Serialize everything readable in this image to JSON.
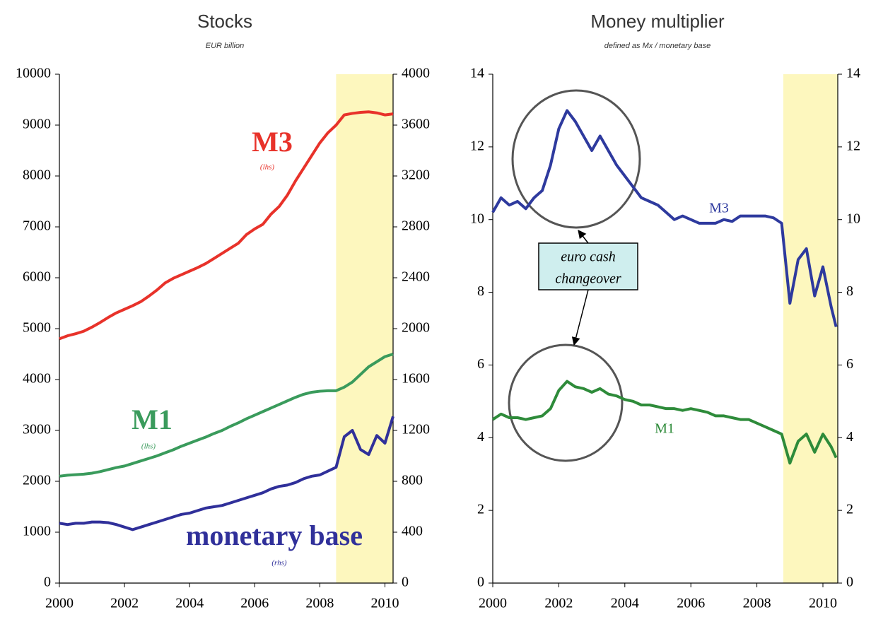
{
  "chart_data": [
    {
      "type": "line",
      "title": "Stocks",
      "subtitle": "EUR billion",
      "xlim": [
        2000,
        2010.25
      ],
      "xticks": [
        2000,
        2002,
        2004,
        2006,
        2008,
        2010
      ],
      "ylim": [
        0,
        10000
      ],
      "yticks": [
        0,
        1000,
        2000,
        3000,
        4000,
        5000,
        6000,
        7000,
        8000,
        9000,
        10000
      ],
      "y2lim": [
        0,
        4000
      ],
      "y2ticks": [
        0,
        400,
        800,
        1200,
        1600,
        2000,
        2400,
        2800,
        3200,
        3600,
        4000
      ],
      "shade": [
        2008.5,
        2010.25
      ],
      "shade_color": "#fdf7be",
      "x": [
        2000,
        2000.25,
        2000.5,
        2000.75,
        2001,
        2001.25,
        2001.5,
        2001.75,
        2002,
        2002.25,
        2002.5,
        2002.75,
        2003,
        2003.25,
        2003.5,
        2003.75,
        2004,
        2004.25,
        2004.5,
        2004.75,
        2005,
        2005.25,
        2005.5,
        2005.75,
        2006,
        2006.25,
        2006.5,
        2006.75,
        2007,
        2007.25,
        2007.5,
        2007.75,
        2008,
        2008.25,
        2008.5,
        2008.75,
        2009,
        2009.25,
        2009.5,
        2009.75,
        2010,
        2010.25
      ],
      "series": [
        {
          "name": "M3",
          "color": "#e8322a",
          "values": [
            4800,
            4860,
            4900,
            4950,
            5030,
            5120,
            5220,
            5310,
            5380,
            5450,
            5530,
            5640,
            5760,
            5900,
            5990,
            6060,
            6130,
            6200,
            6280,
            6380,
            6480,
            6580,
            6680,
            6850,
            6960,
            7050,
            7250,
            7400,
            7620,
            7900,
            8150,
            8400,
            8650,
            8850,
            9000,
            9200,
            9230,
            9250,
            9260,
            9240,
            9200,
            9220
          ]
        },
        {
          "name": "M1",
          "color": "#3a9b5c",
          "values": [
            2100,
            2120,
            2130,
            2140,
            2160,
            2190,
            2230,
            2270,
            2300,
            2350,
            2400,
            2450,
            2500,
            2560,
            2620,
            2690,
            2750,
            2810,
            2870,
            2940,
            3000,
            3080,
            3150,
            3230,
            3300,
            3370,
            3440,
            3510,
            3580,
            3650,
            3710,
            3750,
            3770,
            3780,
            3780,
            3850,
            3950,
            4100,
            4250,
            4350,
            4450,
            4500
          ]
        },
        {
          "name": "monetary base",
          "color": "#30309a",
          "axis": "y2",
          "values": [
            470,
            460,
            470,
            470,
            480,
            480,
            475,
            460,
            440,
            420,
            440,
            460,
            480,
            500,
            520,
            540,
            550,
            570,
            590,
            600,
            610,
            630,
            650,
            670,
            690,
            710,
            740,
            760,
            770,
            790,
            820,
            840,
            850,
            880,
            910,
            1150,
            1200,
            1050,
            1010,
            1160,
            1100,
            1310
          ]
        }
      ],
      "annotations": [
        "M3",
        "(lhs)",
        "M1",
        "(lhs)",
        "monetary base",
        "(rhs)"
      ]
    },
    {
      "type": "line",
      "title": "Money multiplier",
      "subtitle": "defined as Mx / monetary base",
      "xlim": [
        2000,
        2010.45
      ],
      "xticks": [
        2000,
        2002,
        2004,
        2006,
        2008,
        2010
      ],
      "ylim": [
        0,
        14
      ],
      "yticks": [
        0,
        2,
        4,
        6,
        8,
        10,
        12,
        14
      ],
      "y2lim": [
        0,
        14
      ],
      "y2ticks": [
        0,
        2,
        4,
        6,
        8,
        10,
        12,
        14
      ],
      "shade": [
        2008.8,
        2010.45
      ],
      "shade_color": "#fdf7be",
      "x": [
        2000,
        2000.25,
        2000.5,
        2000.75,
        2001,
        2001.25,
        2001.5,
        2001.75,
        2002,
        2002.25,
        2002.5,
        2002.75,
        2003,
        2003.25,
        2003.5,
        2003.75,
        2004,
        2004.25,
        2004.5,
        2004.75,
        2005,
        2005.25,
        2005.5,
        2005.75,
        2006,
        2006.25,
        2006.5,
        2006.75,
        2007,
        2007.25,
        2007.5,
        2007.75,
        2008,
        2008.25,
        2008.5,
        2008.75,
        2009,
        2009.25,
        2009.5,
        2009.75,
        2010,
        2010.25,
        2010.4
      ],
      "series": [
        {
          "name": "M3",
          "color": "#2e3a9e",
          "values": [
            10.2,
            10.6,
            10.4,
            10.5,
            10.3,
            10.6,
            10.8,
            11.5,
            12.5,
            13.0,
            12.7,
            12.3,
            11.9,
            12.3,
            11.9,
            11.5,
            11.2,
            10.9,
            10.6,
            10.5,
            10.4,
            10.2,
            10.0,
            10.1,
            10.0,
            9.9,
            9.9,
            9.9,
            10.0,
            9.95,
            10.1,
            10.1,
            10.1,
            10.1,
            10.05,
            9.9,
            7.7,
            8.9,
            9.2,
            7.9,
            8.7,
            7.6,
            7.05
          ]
        },
        {
          "name": "M1",
          "color": "#2e8b3a",
          "values": [
            4.5,
            4.65,
            4.55,
            4.55,
            4.5,
            4.55,
            4.6,
            4.8,
            5.3,
            5.55,
            5.4,
            5.35,
            5.25,
            5.35,
            5.2,
            5.15,
            5.05,
            5.0,
            4.9,
            4.9,
            4.85,
            4.8,
            4.8,
            4.75,
            4.8,
            4.75,
            4.7,
            4.6,
            4.6,
            4.55,
            4.5,
            4.5,
            4.4,
            4.3,
            4.2,
            4.1,
            3.3,
            3.9,
            4.1,
            3.6,
            4.1,
            3.75,
            3.45
          ]
        }
      ],
      "annotations": [
        "M3",
        "M1",
        "euro cash",
        "changeover"
      ]
    }
  ]
}
